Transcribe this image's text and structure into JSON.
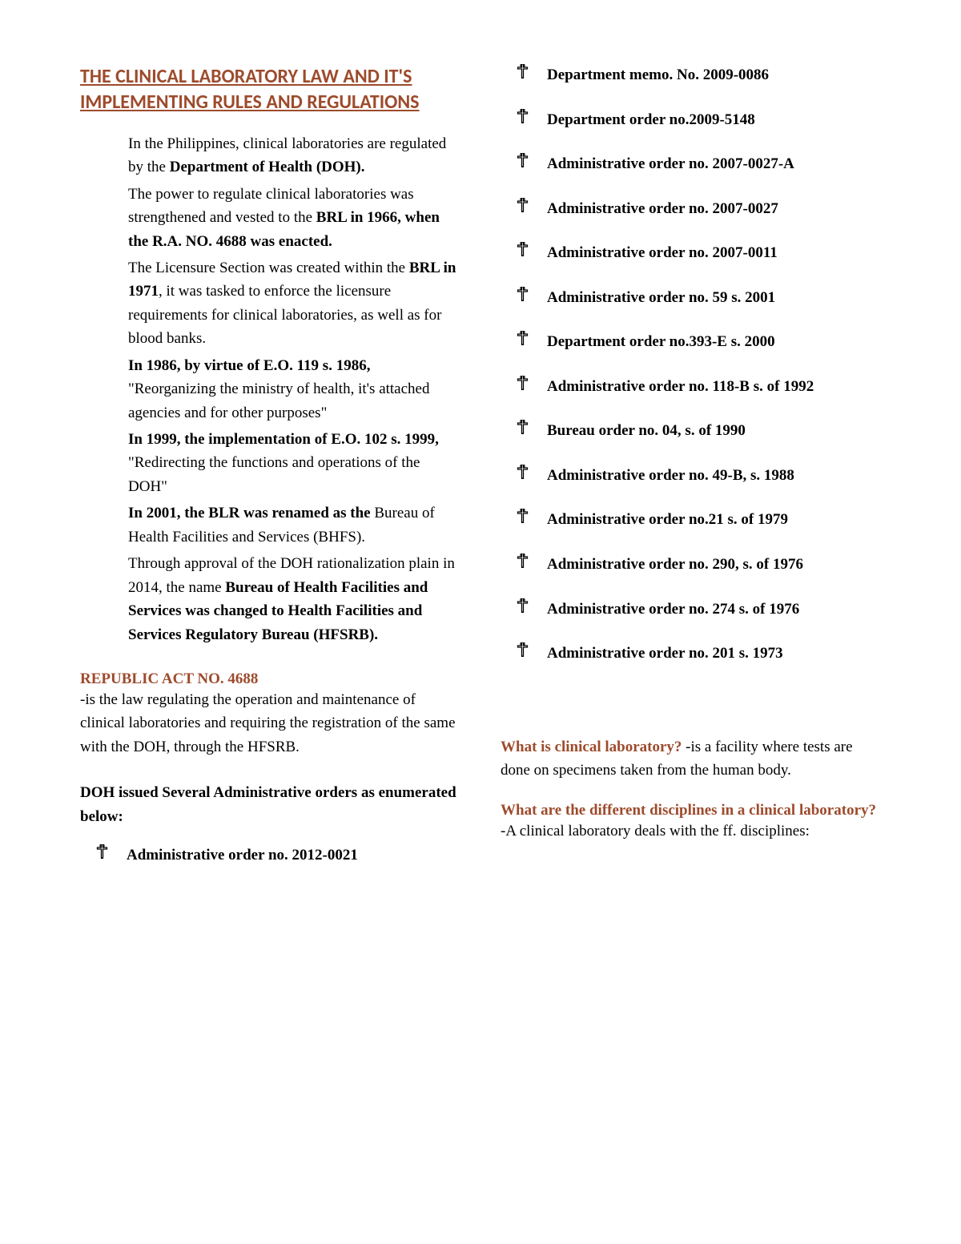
{
  "title": "THE CLINICAL LABORATORY LAW AND IT'S IMPLEMENTING RULES AND REGULATIONS",
  "intro": [
    {
      "runs": [
        {
          "t": "In the Philippines, clinical laboratories are regulated by the ",
          "b": false
        },
        {
          "t": "Department of Health (DOH).",
          "b": true
        }
      ]
    },
    {
      "runs": [
        {
          "t": "The power to regulate clinical laboratories was strengthened and vested to the ",
          "b": false
        },
        {
          "t": "BRL in 1966, when the R.A. NO. 4688 was enacted.",
          "b": true
        }
      ]
    },
    {
      "runs": [
        {
          "t": "The Licensure Section was created within the ",
          "b": false
        },
        {
          "t": "BRL in 1971",
          "b": true
        },
        {
          "t": ", it was tasked to enforce the licensure requirements for clinical laboratories, as well as for blood banks.",
          "b": false
        }
      ]
    },
    {
      "runs": [
        {
          "t": "In 1986, by virtue of E.O. 119 s. 1986, ",
          "b": true
        },
        {
          "t": "\"Reorganizing the ministry of health, it's attached agencies and for other purposes\"",
          "b": false
        }
      ]
    },
    {
      "runs": [
        {
          "t": "In 1999, the implementation of E.O. 102 s. 1999, ",
          "b": true
        },
        {
          "t": "\"Redirecting the functions and operations of the DOH\"",
          "b": false
        }
      ]
    },
    {
      "runs": [
        {
          "t": "In 2001, the BLR was renamed as the ",
          "b": true
        },
        {
          "t": "Bureau of Health Facilities and Services (BHFS).",
          "b": false
        }
      ]
    },
    {
      "runs": [
        {
          "t": "Through approval of the DOH rationalization plain in 2014, the name ",
          "b": false
        },
        {
          "t": "Bureau of Health Facilities and Services was changed to Health Facilities and Services Regulatory Bureau (HFSRB).",
          "b": true
        }
      ]
    }
  ],
  "ra_head": "REPUBLIC ACT NO. 4688",
  "ra_text": "-is the law regulating the operation and maintenance of clinical laboratories and requiring the registration of the same with the DOH, through the HFSRB.",
  "orders_intro": "DOH issued Several Administrative orders as enumerated below:",
  "orders_left": [
    "Administrative order no. 2012-0021"
  ],
  "orders_right": [
    "Department memo. No. 2009-0086",
    "Department order no.2009-5148",
    "Administrative order no. 2007-0027-A",
    "Administrative order no. 2007-0027",
    "Administrative order no. 2007-0011",
    "Administrative order no. 59 s. 2001",
    "Department order no.393-E s. 2000",
    "Administrative order no. 118-B s. of 1992",
    "Bureau order no. 04, s. of 1990",
    "Administrative order no. 49-B, s. 1988",
    "Administrative order no.21 s. of 1979",
    "Administrative order no. 290, s. of 1976",
    "Administrative order no. 274 s. of 1976",
    "Administrative order no. 201 s. 1973"
  ],
  "q1_head": "What is clinical laboratory? ",
  "q1_text": "-is a facility where tests are done on specimens taken from the human body.",
  "q2_head": "What are the different disciplines in a clinical laboratory?",
  "q2_text": "-A clinical laboratory deals with the ff. disciplines:"
}
